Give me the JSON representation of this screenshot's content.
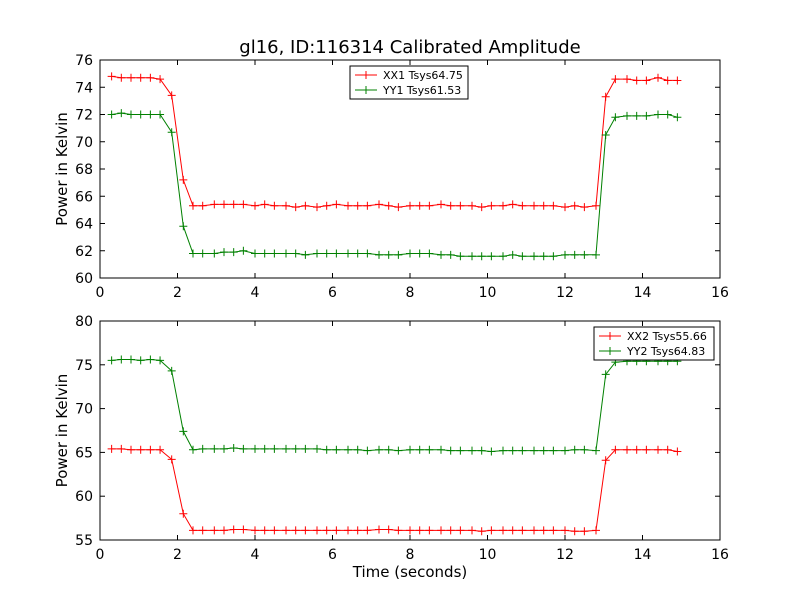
{
  "figure": {
    "title": "gl16, ID:116314 Calibrated Amplitude"
  },
  "chart_data": [
    {
      "type": "line",
      "title": "gl16, ID:116314 Calibrated Amplitude",
      "xlabel": "",
      "ylabel": "Power in Kelvin",
      "xlim": [
        0,
        16
      ],
      "ylim": [
        60,
        76
      ],
      "xticks": [
        "0",
        "2",
        "4",
        "6",
        "8",
        "10",
        "12",
        "14",
        "16"
      ],
      "yticks": [
        "60",
        "62",
        "64",
        "66",
        "68",
        "70",
        "72",
        "74",
        "76"
      ],
      "grid": false,
      "legend_position": "top-center",
      "x": [
        0.3,
        0.55,
        0.8,
        1.05,
        1.3,
        1.55,
        1.85,
        2.15,
        2.4,
        2.65,
        2.95,
        3.2,
        3.45,
        3.7,
        4.0,
        4.25,
        4.5,
        4.8,
        5.05,
        5.3,
        5.6,
        5.85,
        6.1,
        6.4,
        6.65,
        6.9,
        7.2,
        7.45,
        7.7,
        8.0,
        8.25,
        8.5,
        8.8,
        9.05,
        9.3,
        9.6,
        9.85,
        10.1,
        10.4,
        10.65,
        10.9,
        11.2,
        11.45,
        11.7,
        12.0,
        12.25,
        12.5,
        12.8,
        13.05,
        13.3,
        13.6,
        13.85,
        14.1,
        14.4,
        14.65,
        14.9
      ],
      "series": [
        {
          "name": "XX1 Tsys64.75",
          "color": "#ff0000",
          "values": [
            74.8,
            74.7,
            74.7,
            74.7,
            74.7,
            74.6,
            73.4,
            67.2,
            65.3,
            65.3,
            65.4,
            65.4,
            65.4,
            65.4,
            65.3,
            65.4,
            65.3,
            65.3,
            65.2,
            65.3,
            65.2,
            65.3,
            65.4,
            65.3,
            65.3,
            65.3,
            65.4,
            65.3,
            65.2,
            65.3,
            65.3,
            65.3,
            65.4,
            65.3,
            65.3,
            65.3,
            65.2,
            65.3,
            65.3,
            65.4,
            65.3,
            65.3,
            65.3,
            65.3,
            65.2,
            65.3,
            65.2,
            65.3,
            73.3,
            74.6,
            74.6,
            74.5,
            74.5,
            74.7,
            74.5,
            74.5
          ]
        },
        {
          "name": "YY1 Tsys61.53",
          "color": "#008000",
          "values": [
            72.0,
            72.1,
            72.0,
            72.0,
            72.0,
            72.0,
            70.7,
            63.8,
            61.8,
            61.8,
            61.8,
            61.9,
            61.9,
            62.0,
            61.8,
            61.8,
            61.8,
            61.8,
            61.8,
            61.7,
            61.8,
            61.8,
            61.8,
            61.8,
            61.8,
            61.8,
            61.7,
            61.7,
            61.7,
            61.8,
            61.8,
            61.8,
            61.7,
            61.7,
            61.6,
            61.6,
            61.6,
            61.6,
            61.6,
            61.7,
            61.6,
            61.6,
            61.6,
            61.6,
            61.7,
            61.7,
            61.7,
            61.7,
            70.5,
            71.8,
            71.9,
            71.9,
            71.9,
            72.0,
            72.0,
            71.8
          ]
        }
      ]
    },
    {
      "type": "line",
      "title": "",
      "xlabel": "Time (seconds)",
      "ylabel": "Power in Kelvin",
      "xlim": [
        0,
        16
      ],
      "ylim": [
        55,
        80
      ],
      "xticks": [
        "0",
        "2",
        "4",
        "6",
        "8",
        "10",
        "12",
        "14",
        "16"
      ],
      "yticks": [
        "55",
        "60",
        "65",
        "70",
        "75",
        "80"
      ],
      "grid": false,
      "legend_position": "top-right",
      "x": [
        0.3,
        0.55,
        0.8,
        1.05,
        1.3,
        1.55,
        1.85,
        2.15,
        2.4,
        2.65,
        2.95,
        3.2,
        3.45,
        3.7,
        4.0,
        4.25,
        4.5,
        4.8,
        5.05,
        5.3,
        5.6,
        5.85,
        6.1,
        6.4,
        6.65,
        6.9,
        7.2,
        7.45,
        7.7,
        8.0,
        8.25,
        8.5,
        8.8,
        9.05,
        9.3,
        9.6,
        9.85,
        10.1,
        10.4,
        10.65,
        10.9,
        11.2,
        11.45,
        11.7,
        12.0,
        12.25,
        12.5,
        12.8,
        13.05,
        13.3,
        13.6,
        13.85,
        14.1,
        14.4,
        14.65,
        14.9
      ],
      "series": [
        {
          "name": "XX2 Tsys55.66",
          "color": "#ff0000",
          "values": [
            65.4,
            65.4,
            65.3,
            65.3,
            65.3,
            65.3,
            64.2,
            58.0,
            56.1,
            56.1,
            56.1,
            56.1,
            56.2,
            56.2,
            56.1,
            56.1,
            56.1,
            56.1,
            56.1,
            56.1,
            56.1,
            56.1,
            56.1,
            56.1,
            56.1,
            56.1,
            56.2,
            56.2,
            56.1,
            56.1,
            56.1,
            56.1,
            56.1,
            56.1,
            56.1,
            56.1,
            56.0,
            56.1,
            56.1,
            56.1,
            56.1,
            56.1,
            56.1,
            56.1,
            56.1,
            56.0,
            56.0,
            56.1,
            64.1,
            65.3,
            65.3,
            65.3,
            65.3,
            65.3,
            65.3,
            65.1
          ]
        },
        {
          "name": "YY2 Tsys64.83",
          "color": "#008000",
          "values": [
            75.5,
            75.6,
            75.6,
            75.5,
            75.6,
            75.5,
            74.3,
            67.4,
            65.3,
            65.4,
            65.4,
            65.4,
            65.5,
            65.4,
            65.4,
            65.4,
            65.4,
            65.4,
            65.4,
            65.4,
            65.4,
            65.3,
            65.3,
            65.3,
            65.3,
            65.2,
            65.3,
            65.3,
            65.2,
            65.3,
            65.3,
            65.3,
            65.3,
            65.2,
            65.2,
            65.2,
            65.2,
            65.1,
            65.2,
            65.2,
            65.2,
            65.2,
            65.2,
            65.2,
            65.2,
            65.3,
            65.3,
            65.2,
            73.9,
            75.3,
            75.4,
            75.4,
            75.4,
            75.4,
            75.4,
            75.4
          ]
        }
      ]
    }
  ]
}
